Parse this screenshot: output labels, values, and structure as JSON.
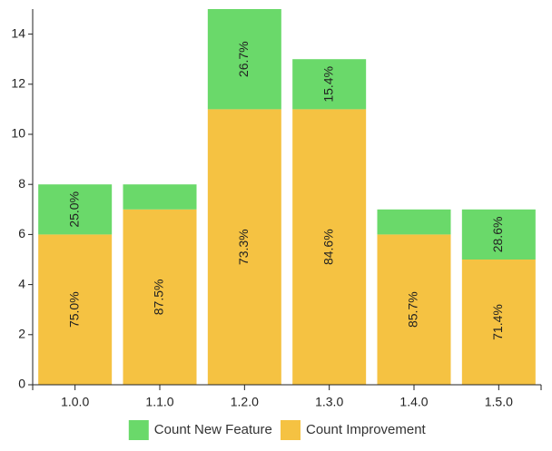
{
  "chart_data": {
    "type": "bar",
    "stacked": true,
    "categories": [
      "1.0.0",
      "1.1.0",
      "1.2.0",
      "1.3.0",
      "1.4.0",
      "1.5.0"
    ],
    "series": [
      {
        "name": "Count Improvement",
        "color": "#f5c242",
        "values": [
          6,
          7,
          11,
          11,
          6,
          5
        ],
        "labels": [
          "75.0%",
          "87.5%",
          "73.3%",
          "84.6%",
          "85.7%",
          "71.4%"
        ]
      },
      {
        "name": "Count New Feature",
        "color": "#6ad96a",
        "values": [
          2,
          1,
          4,
          2,
          1,
          2
        ],
        "labels": [
          "25.0%",
          "",
          "26.7%",
          "15.4%",
          "",
          "28.6%"
        ]
      }
    ],
    "ylim": [
      0,
      15
    ],
    "yticks": [
      0,
      2,
      4,
      6,
      8,
      10,
      12,
      14
    ],
    "grid": false,
    "legend": {
      "position": "bottom",
      "order": [
        "Count New Feature",
        "Count Improvement"
      ]
    }
  }
}
